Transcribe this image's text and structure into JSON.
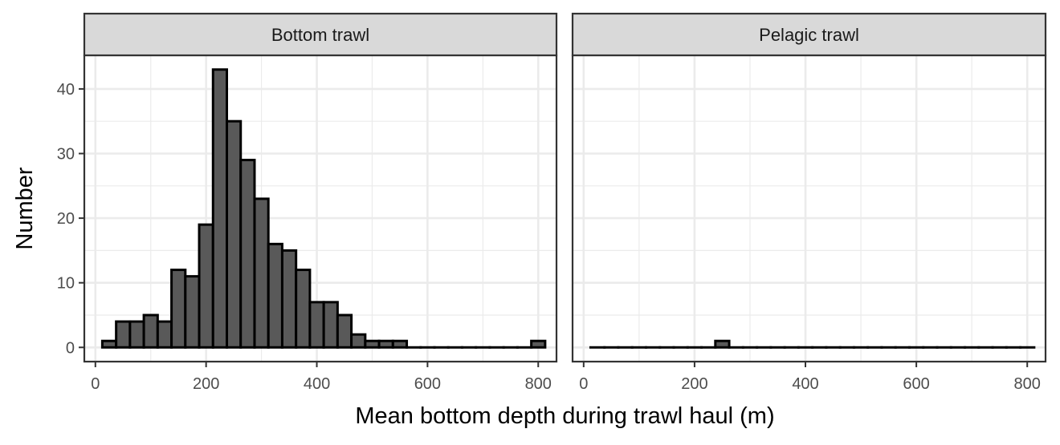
{
  "chart_data": {
    "type": "bar",
    "subtype": "histogram-facets",
    "xlabel": "Mean bottom depth during trawl haul (m)",
    "ylabel": "Number",
    "x_ticks": [
      0,
      200,
      400,
      600,
      800
    ],
    "y_ticks": [
      0,
      10,
      20,
      30,
      40
    ],
    "xlim": [
      -20,
      833
    ],
    "ylim": [
      -2.2,
      45.2
    ],
    "bin_width": 25,
    "bins_left": [
      12.5,
      37.5,
      62.5,
      87.5,
      112.5,
      137.5,
      162.5,
      187.5,
      212.5,
      237.5,
      262.5,
      287.5,
      312.5,
      337.5,
      362.5,
      387.5,
      412.5,
      437.5,
      462.5,
      487.5,
      512.5,
      537.5,
      562.5,
      587.5,
      612.5,
      637.5,
      662.5,
      687.5,
      712.5,
      737.5,
      762.5,
      787.5
    ],
    "grid": true,
    "colors": {
      "bar_fill": "#595959",
      "bar_stroke": "#000000",
      "strip_fill": "#d9d9d9",
      "grid": "#ebebeb",
      "panel_border": "#333333"
    },
    "panels": [
      {
        "name": "Bottom trawl",
        "values": [
          1,
          4,
          4,
          5,
          4,
          12,
          11,
          19,
          43,
          35,
          29,
          23,
          16,
          15,
          12,
          7,
          7,
          5,
          2,
          1,
          1,
          1,
          0,
          0,
          0,
          0,
          0,
          0,
          0,
          0,
          0,
          1
        ]
      },
      {
        "name": "Pelagic trawl",
        "values": [
          0,
          0,
          0,
          0,
          0,
          0,
          0,
          0,
          0,
          1,
          0,
          0,
          0,
          0,
          0,
          0,
          0,
          0,
          0,
          0,
          0,
          0,
          0,
          0,
          0,
          0,
          0,
          0,
          0,
          0,
          0,
          0
        ]
      }
    ]
  }
}
